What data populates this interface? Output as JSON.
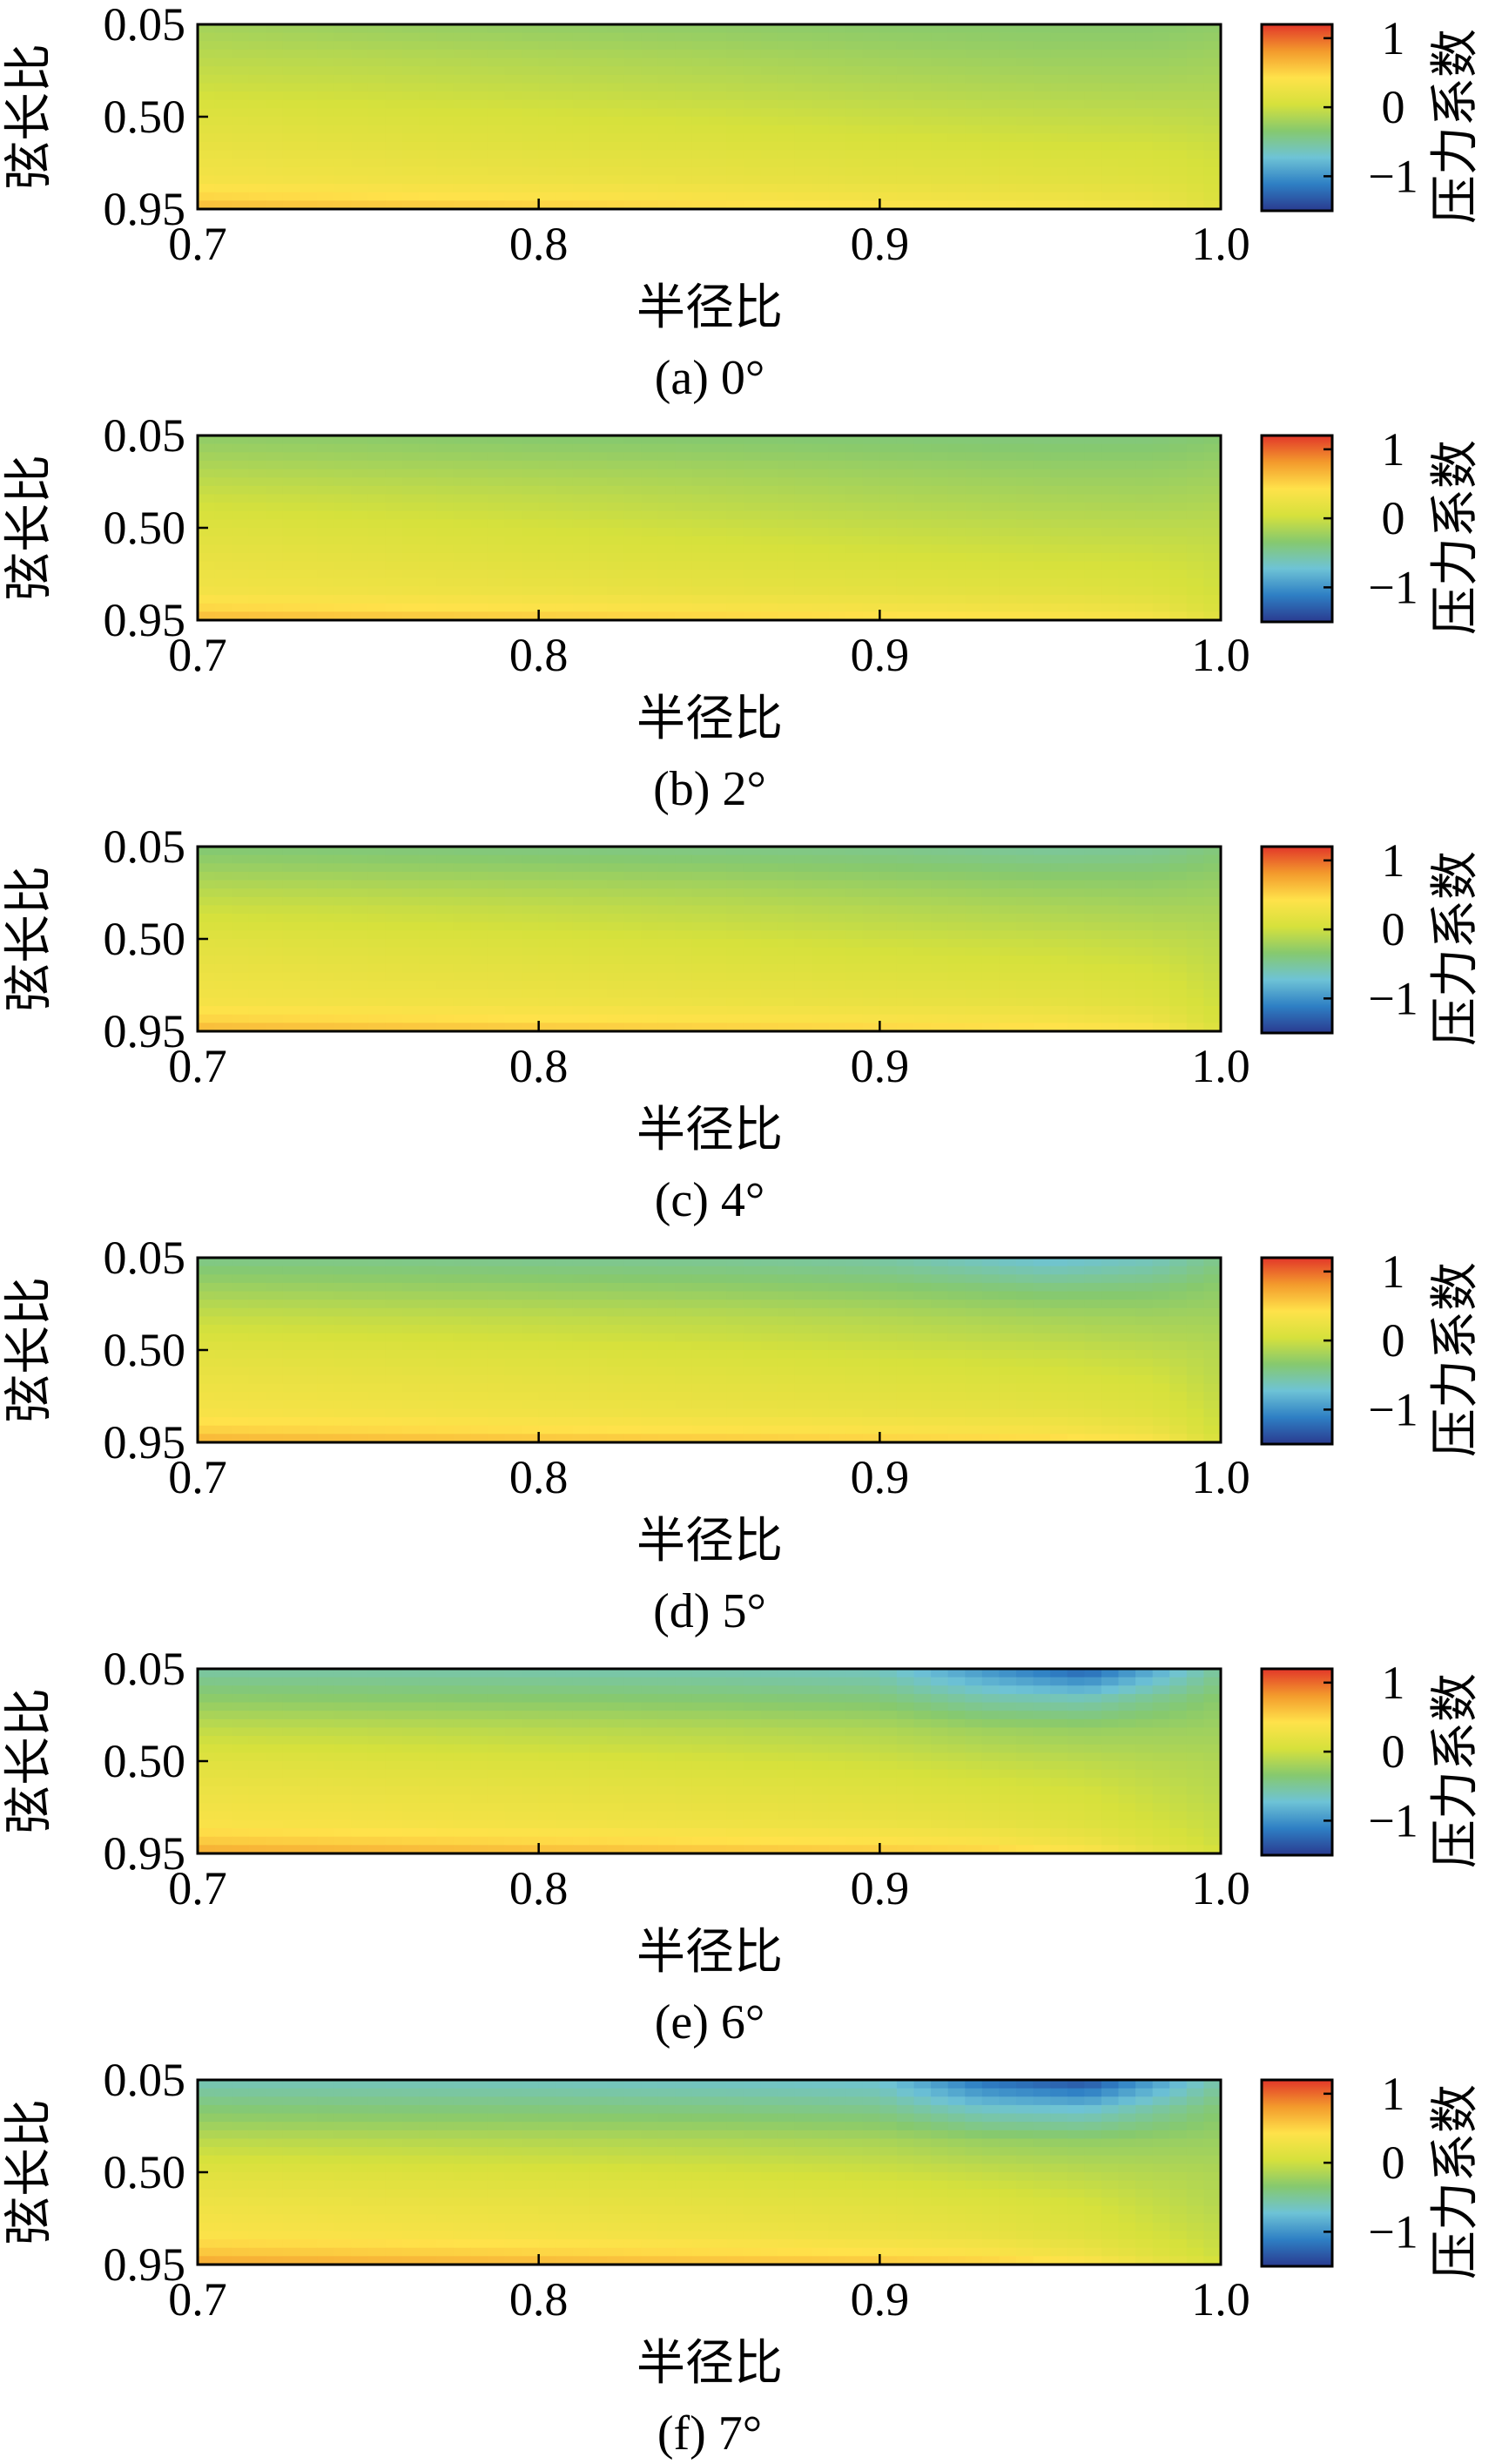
{
  "chart_data": [
    {
      "type": "heatmap",
      "caption": "(a)  0°",
      "xlabel": "半径比",
      "ylabel": "弦长比",
      "colorbar_label": "压力系数",
      "xlim": [
        0.7,
        1.0
      ],
      "x_ticks": [
        "0.7",
        "0.8",
        "0.9",
        "1.0"
      ],
      "y_ticks": [
        "0.05",
        "0.50",
        "0.95"
      ],
      "colorbar_ticks": [
        "1",
        "0",
        "−1"
      ],
      "clim": [
        -1.5,
        1.2
      ],
      "colormap": [
        "#2a3a8f",
        "#2e7fc4",
        "#6ec3d6",
        "#86c96e",
        "#d6e13c",
        "#ffe24a",
        "#f39a2c",
        "#e2362a"
      ],
      "x": [
        0.7,
        0.75,
        0.8,
        0.85,
        0.9,
        0.95,
        0.98,
        1.0
      ],
      "y": [
        0.05,
        0.2,
        0.35,
        0.5,
        0.65,
        0.8,
        0.92,
        0.95
      ],
      "z": [
        [
          -0.2,
          -0.25,
          -0.28,
          -0.3,
          -0.32,
          -0.33,
          -0.33,
          -0.3
        ],
        [
          -0.1,
          -0.12,
          -0.15,
          -0.18,
          -0.22,
          -0.25,
          -0.25,
          -0.22
        ],
        [
          0.0,
          -0.02,
          -0.05,
          -0.08,
          -0.12,
          -0.15,
          -0.16,
          -0.15
        ],
        [
          0.12,
          0.08,
          0.05,
          0.02,
          -0.02,
          -0.05,
          -0.06,
          -0.08
        ],
        [
          0.22,
          0.18,
          0.14,
          0.12,
          0.08,
          0.05,
          0.04,
          0.0
        ],
        [
          0.32,
          0.28,
          0.25,
          0.22,
          0.18,
          0.15,
          0.12,
          0.05
        ],
        [
          0.55,
          0.5,
          0.45,
          0.4,
          0.35,
          0.3,
          0.25,
          0.1
        ],
        [
          0.7,
          0.65,
          0.6,
          0.55,
          0.5,
          0.45,
          0.4,
          0.2
        ]
      ]
    },
    {
      "type": "heatmap",
      "caption": "(b)  2°",
      "xlabel": "半径比",
      "ylabel": "弦长比",
      "colorbar_label": "压力系数",
      "xlim": [
        0.7,
        1.0
      ],
      "x_ticks": [
        "0.7",
        "0.8",
        "0.9",
        "1.0"
      ],
      "y_ticks": [
        "0.05",
        "0.50",
        "0.95"
      ],
      "colorbar_ticks": [
        "1",
        "0",
        "−1"
      ],
      "clim": [
        -1.5,
        1.2
      ],
      "colormap": [
        "#2a3a8f",
        "#2e7fc4",
        "#6ec3d6",
        "#86c96e",
        "#d6e13c",
        "#ffe24a",
        "#f39a2c",
        "#e2362a"
      ],
      "x": [
        0.7,
        0.75,
        0.8,
        0.85,
        0.9,
        0.95,
        0.98,
        1.0
      ],
      "y": [
        0.05,
        0.2,
        0.35,
        0.5,
        0.65,
        0.8,
        0.92,
        0.95
      ],
      "z": [
        [
          -0.3,
          -0.32,
          -0.35,
          -0.36,
          -0.38,
          -0.4,
          -0.4,
          -0.35
        ],
        [
          -0.15,
          -0.18,
          -0.2,
          -0.22,
          -0.25,
          -0.28,
          -0.28,
          -0.25
        ],
        [
          0.0,
          -0.03,
          -0.06,
          -0.1,
          -0.14,
          -0.17,
          -0.18,
          -0.16
        ],
        [
          0.12,
          0.08,
          0.04,
          0.0,
          -0.04,
          -0.07,
          -0.08,
          -0.08
        ],
        [
          0.22,
          0.18,
          0.13,
          0.1,
          0.06,
          0.03,
          0.02,
          -0.02
        ],
        [
          0.3,
          0.27,
          0.24,
          0.2,
          0.17,
          0.14,
          0.1,
          0.02
        ],
        [
          0.55,
          0.5,
          0.46,
          0.42,
          0.38,
          0.34,
          0.28,
          0.08
        ],
        [
          0.72,
          0.68,
          0.64,
          0.6,
          0.55,
          0.5,
          0.45,
          0.2
        ]
      ]
    },
    {
      "type": "heatmap",
      "caption": "(c)  4°",
      "xlabel": "半径比",
      "ylabel": "弦长比",
      "colorbar_label": "压力系数",
      "xlim": [
        0.7,
        1.0
      ],
      "x_ticks": [
        "0.7",
        "0.8",
        "0.9",
        "1.0"
      ],
      "y_ticks": [
        "0.05",
        "0.50",
        "0.95"
      ],
      "colorbar_ticks": [
        "1",
        "0",
        "−1"
      ],
      "clim": [
        -1.5,
        1.2
      ],
      "colormap": [
        "#2a3a8f",
        "#2e7fc4",
        "#6ec3d6",
        "#86c96e",
        "#d6e13c",
        "#ffe24a",
        "#f39a2c",
        "#e2362a"
      ],
      "x": [
        0.7,
        0.75,
        0.8,
        0.85,
        0.9,
        0.95,
        0.98,
        1.0
      ],
      "y": [
        0.05,
        0.2,
        0.35,
        0.5,
        0.65,
        0.8,
        0.92,
        0.95
      ],
      "z": [
        [
          -0.38,
          -0.4,
          -0.42,
          -0.44,
          -0.46,
          -0.52,
          -0.5,
          -0.4
        ],
        [
          -0.18,
          -0.2,
          -0.22,
          -0.24,
          -0.28,
          -0.32,
          -0.32,
          -0.28
        ],
        [
          0.0,
          -0.02,
          -0.05,
          -0.08,
          -0.12,
          -0.16,
          -0.18,
          -0.18
        ],
        [
          0.14,
          0.1,
          0.07,
          0.04,
          0.0,
          -0.03,
          -0.06,
          -0.1
        ],
        [
          0.24,
          0.2,
          0.17,
          0.14,
          0.1,
          0.07,
          0.04,
          -0.05
        ],
        [
          0.32,
          0.29,
          0.27,
          0.24,
          0.21,
          0.18,
          0.12,
          0.0
        ],
        [
          0.56,
          0.52,
          0.48,
          0.45,
          0.42,
          0.38,
          0.3,
          0.05
        ],
        [
          0.74,
          0.7,
          0.66,
          0.62,
          0.58,
          0.54,
          0.48,
          0.15
        ]
      ]
    },
    {
      "type": "heatmap",
      "caption": "(d)  5°",
      "xlabel": "半径比",
      "ylabel": "弦长比",
      "colorbar_label": "压力系数",
      "xlim": [
        0.7,
        1.0
      ],
      "x_ticks": [
        "0.7",
        "0.8",
        "0.9",
        "1.0"
      ],
      "y_ticks": [
        "0.05",
        "0.50",
        "0.95"
      ],
      "colorbar_ticks": [
        "1",
        "0",
        "−1"
      ],
      "clim": [
        -1.5,
        1.2
      ],
      "colormap": [
        "#2a3a8f",
        "#2e7fc4",
        "#6ec3d6",
        "#86c96e",
        "#d6e13c",
        "#ffe24a",
        "#f39a2c",
        "#e2362a"
      ],
      "x": [
        0.7,
        0.75,
        0.8,
        0.85,
        0.9,
        0.95,
        0.98,
        1.0
      ],
      "y": [
        0.05,
        0.2,
        0.35,
        0.5,
        0.65,
        0.8,
        0.92,
        0.95
      ],
      "z": [
        [
          -0.45,
          -0.46,
          -0.48,
          -0.5,
          -0.55,
          -0.75,
          -0.65,
          -0.45
        ],
        [
          -0.22,
          -0.24,
          -0.26,
          -0.28,
          -0.32,
          -0.4,
          -0.38,
          -0.3
        ],
        [
          -0.02,
          -0.04,
          -0.06,
          -0.08,
          -0.12,
          -0.18,
          -0.2,
          -0.2
        ],
        [
          0.14,
          0.11,
          0.08,
          0.05,
          0.01,
          -0.03,
          -0.07,
          -0.12
        ],
        [
          0.25,
          0.22,
          0.19,
          0.16,
          0.12,
          0.08,
          0.04,
          -0.08
        ],
        [
          0.34,
          0.31,
          0.28,
          0.25,
          0.22,
          0.19,
          0.12,
          -0.02
        ],
        [
          0.58,
          0.54,
          0.5,
          0.47,
          0.44,
          0.4,
          0.3,
          0.02
        ],
        [
          0.76,
          0.72,
          0.68,
          0.64,
          0.6,
          0.56,
          0.48,
          0.12
        ]
      ]
    },
    {
      "type": "heatmap",
      "caption": "(e)  6°",
      "xlabel": "半径比",
      "ylabel": "弦长比",
      "colorbar_label": "压力系数",
      "xlim": [
        0.7,
        1.0
      ],
      "x_ticks": [
        "0.7",
        "0.8",
        "0.9",
        "1.0"
      ],
      "y_ticks": [
        "0.05",
        "0.50",
        "0.95"
      ],
      "colorbar_ticks": [
        "1",
        "0",
        "−1"
      ],
      "clim": [
        -1.5,
        1.2
      ],
      "colormap": [
        "#2a3a8f",
        "#2e7fc4",
        "#6ec3d6",
        "#86c96e",
        "#d6e13c",
        "#ffe24a",
        "#f39a2c",
        "#e2362a"
      ],
      "x": [
        0.7,
        0.75,
        0.8,
        0.85,
        0.9,
        0.93,
        0.96,
        1.0
      ],
      "y": [
        0.05,
        0.2,
        0.35,
        0.5,
        0.65,
        0.8,
        0.92,
        0.95
      ],
      "z": [
        [
          -0.55,
          -0.56,
          -0.58,
          -0.6,
          -0.65,
          -1.0,
          -1.3,
          -0.5
        ],
        [
          -0.3,
          -0.32,
          -0.33,
          -0.35,
          -0.38,
          -0.55,
          -0.6,
          -0.32
        ],
        [
          -0.05,
          -0.07,
          -0.09,
          -0.11,
          -0.14,
          -0.22,
          -0.25,
          -0.22
        ],
        [
          0.14,
          0.11,
          0.08,
          0.05,
          0.01,
          -0.04,
          -0.08,
          -0.14
        ],
        [
          0.26,
          0.23,
          0.2,
          0.17,
          0.13,
          0.09,
          0.04,
          -0.1
        ],
        [
          0.36,
          0.33,
          0.3,
          0.27,
          0.24,
          0.2,
          0.12,
          -0.04
        ],
        [
          0.62,
          0.58,
          0.54,
          0.5,
          0.47,
          0.43,
          0.32,
          0.0
        ],
        [
          0.8,
          0.76,
          0.72,
          0.68,
          0.64,
          0.6,
          0.5,
          0.1
        ]
      ]
    },
    {
      "type": "heatmap",
      "caption": "(f)  7°",
      "xlabel": "半径比",
      "ylabel": "弦长比",
      "colorbar_label": "压力系数",
      "xlim": [
        0.7,
        1.0
      ],
      "x_ticks": [
        "0.7",
        "0.8",
        "0.9",
        "1.0"
      ],
      "y_ticks": [
        "0.05",
        "0.50",
        "0.95"
      ],
      "colorbar_ticks": [
        "1",
        "0",
        "−1"
      ],
      "clim": [
        -1.5,
        1.2
      ],
      "colormap": [
        "#2a3a8f",
        "#2e7fc4",
        "#6ec3d6",
        "#86c96e",
        "#d6e13c",
        "#ffe24a",
        "#f39a2c",
        "#e2362a"
      ],
      "x": [
        0.7,
        0.75,
        0.8,
        0.85,
        0.9,
        0.93,
        0.96,
        1.0
      ],
      "y": [
        0.05,
        0.2,
        0.35,
        0.5,
        0.65,
        0.8,
        0.92,
        0.95
      ],
      "z": [
        [
          -0.62,
          -0.63,
          -0.65,
          -0.68,
          -0.72,
          -1.2,
          -1.4,
          -0.55
        ],
        [
          -0.35,
          -0.37,
          -0.38,
          -0.4,
          -0.44,
          -0.65,
          -0.7,
          -0.35
        ],
        [
          -0.08,
          -0.1,
          -0.12,
          -0.14,
          -0.17,
          -0.25,
          -0.28,
          -0.24
        ],
        [
          0.14,
          0.11,
          0.08,
          0.05,
          0.01,
          -0.04,
          -0.09,
          -0.15
        ],
        [
          0.27,
          0.24,
          0.21,
          0.18,
          0.14,
          0.1,
          0.04,
          -0.12
        ],
        [
          0.38,
          0.35,
          0.32,
          0.29,
          0.25,
          0.21,
          0.12,
          -0.05
        ],
        [
          0.64,
          0.6,
          0.56,
          0.52,
          0.48,
          0.44,
          0.32,
          0.0
        ],
        [
          0.82,
          0.78,
          0.74,
          0.7,
          0.66,
          0.62,
          0.52,
          0.1
        ]
      ]
    }
  ]
}
